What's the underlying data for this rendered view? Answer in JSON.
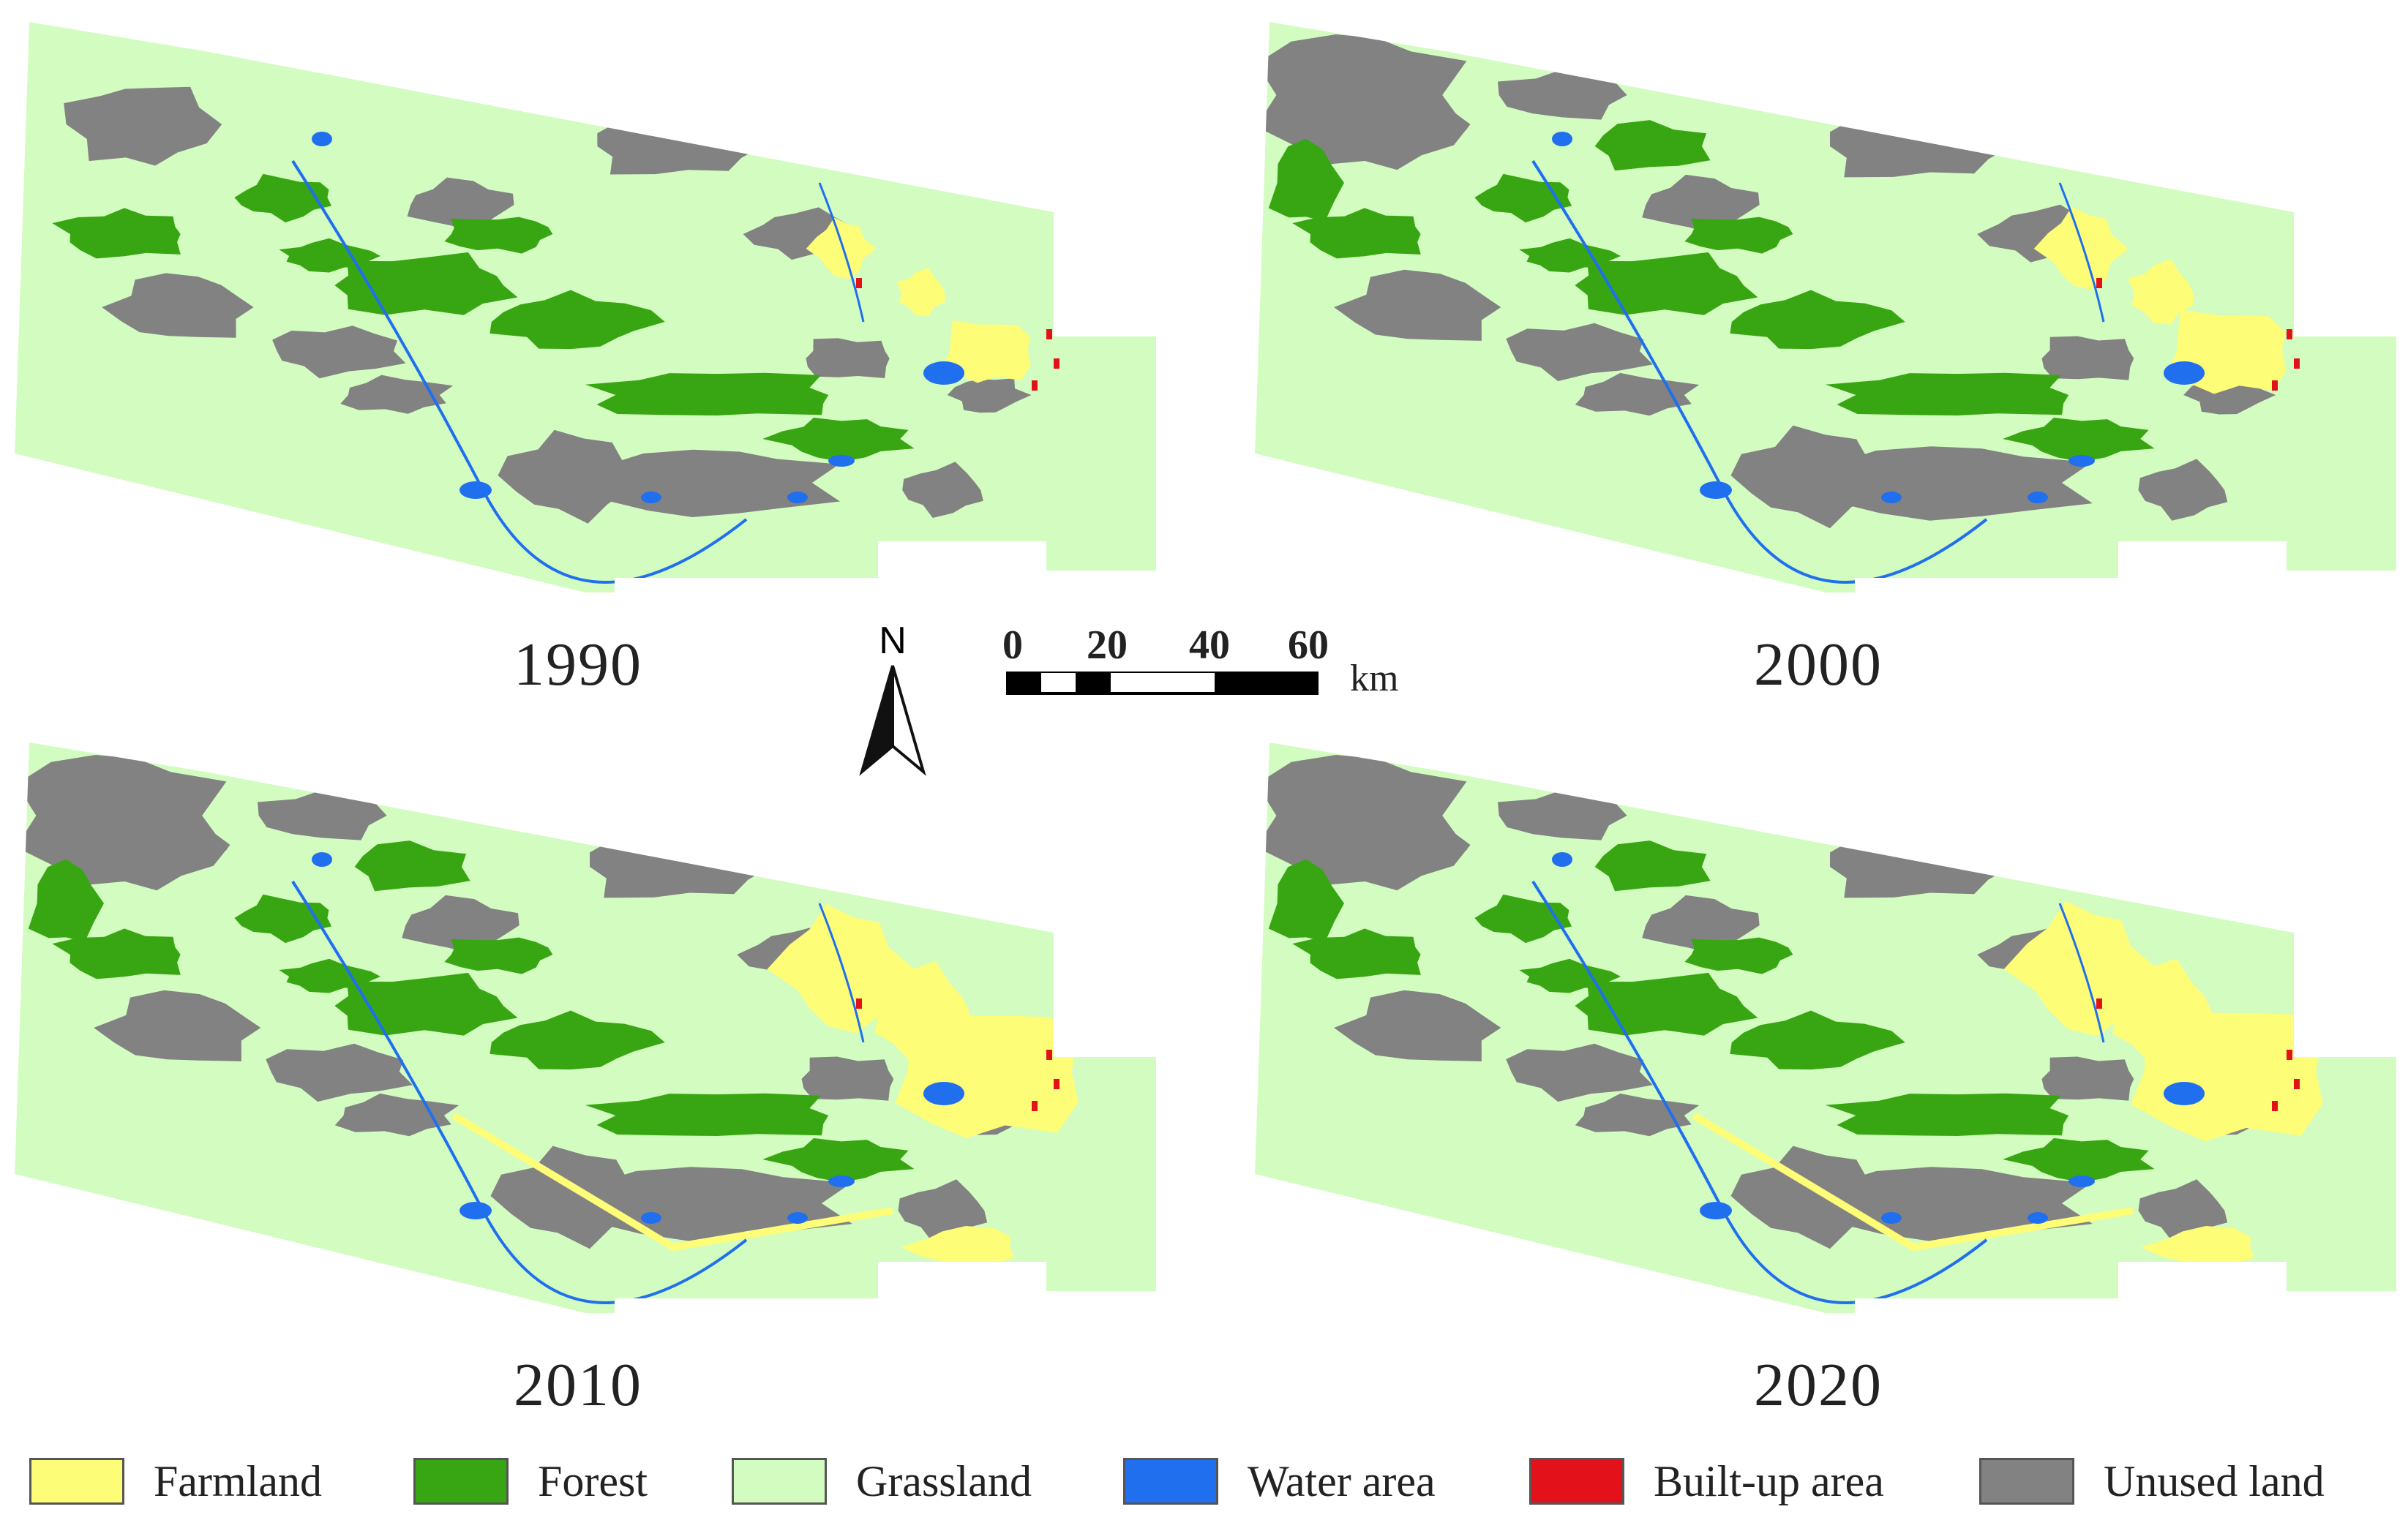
{
  "panels": [
    {
      "year": "1990"
    },
    {
      "year": "2000"
    },
    {
      "year": "2010"
    },
    {
      "year": "2020"
    }
  ],
  "north_arrow": {
    "label": "N"
  },
  "scale_bar": {
    "ticks": [
      "0",
      "20",
      "40",
      "60"
    ],
    "unit": "km"
  },
  "legend": [
    {
      "label": "Farmland",
      "color": "#fdfd78"
    },
    {
      "label": "Forest",
      "color": "#38a612"
    },
    {
      "label": "Grassland",
      "color": "#d3fcc0"
    },
    {
      "label": "Water area",
      "color": "#1f6fef"
    },
    {
      "label": "Built-up area",
      "color": "#e3121a"
    },
    {
      "label": "Unused land",
      "color": "#828282"
    }
  ],
  "colors": {
    "farmland": "#fdfd78",
    "forest": "#38a612",
    "grassland": "#d3fcc0",
    "water": "#1f6fef",
    "builtup": "#e3121a",
    "unused": "#828282"
  }
}
